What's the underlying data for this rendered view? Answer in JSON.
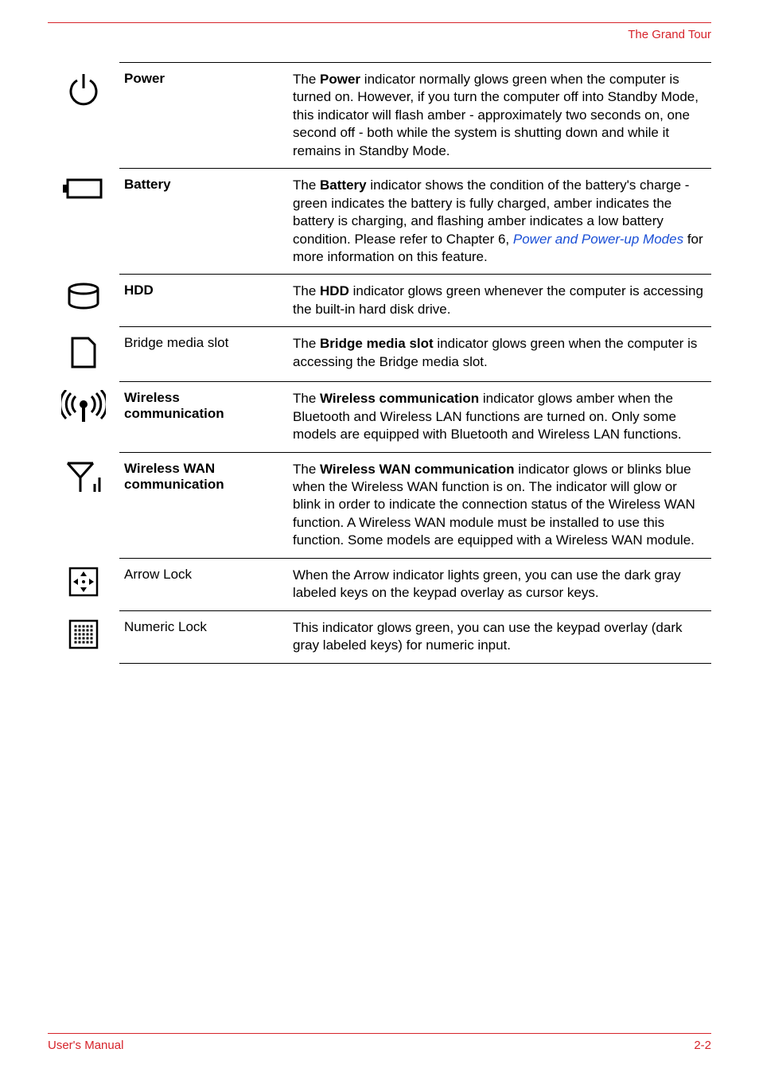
{
  "header": {
    "title": "The Grand Tour"
  },
  "footer": {
    "left": "User's Manual",
    "right": "2-2"
  },
  "colors": {
    "accent": "#d6232a",
    "link": "#1a4fd6",
    "text": "#000000",
    "rule": "#000000"
  },
  "rows": [
    {
      "icon": "power-icon",
      "label": "Power",
      "label_bold": true,
      "desc_parts": [
        {
          "t": "The "
        },
        {
          "t": "Power",
          "bold": true
        },
        {
          "t": " indicator normally glows green when the computer is turned on. However, if you turn the computer off into Standby Mode, this indicator will flash amber - approximately two seconds on, one second off - both while the system is shutting down and while it remains in Standby Mode."
        }
      ]
    },
    {
      "icon": "battery-icon",
      "label": "Battery",
      "label_bold": true,
      "desc_parts": [
        {
          "t": "The "
        },
        {
          "t": "Battery",
          "bold": true
        },
        {
          "t": " indicator shows the condition of the battery's charge - green indicates the battery is fully charged, amber indicates the battery is charging, and flashing amber indicates a low battery condition. Please refer to Chapter 6, "
        },
        {
          "t": "Power and Power-up Modes",
          "link": true
        },
        {
          "t": " for more information on this feature."
        }
      ]
    },
    {
      "icon": "hdd-icon",
      "label": "HDD",
      "label_bold": true,
      "desc_parts": [
        {
          "t": "The "
        },
        {
          "t": "HDD",
          "bold": true
        },
        {
          "t": " indicator glows green whenever the computer is accessing the built-in hard disk drive."
        }
      ]
    },
    {
      "icon": "bridge-media-icon",
      "label": "Bridge media slot",
      "label_bold": false,
      "desc_parts": [
        {
          "t": "The "
        },
        {
          "t": "Bridge media slot",
          "bold": true
        },
        {
          "t": " indicator glows green when the computer is accessing the Bridge media slot."
        }
      ]
    },
    {
      "icon": "wireless-icon",
      "label": "Wireless communication",
      "label_bold": true,
      "desc_parts": [
        {
          "t": "The "
        },
        {
          "t": "Wireless communication",
          "bold": true
        },
        {
          "t": " indicator glows amber when the Bluetooth and Wireless LAN functions are turned on. Only some models are equipped with Bluetooth and Wireless LAN functions."
        }
      ]
    },
    {
      "icon": "wwan-icon",
      "label": "Wireless WAN communication",
      "label_bold": true,
      "desc_parts": [
        {
          "t": "The "
        },
        {
          "t": "Wireless WAN communication",
          "bold": true
        },
        {
          "t": " indicator glows or blinks blue when the Wireless WAN function is on. The indicator will glow or blink in order to indicate the connection status of the Wireless WAN function. A Wireless WAN module must be installed to use this function. Some models are equipped with a Wireless WAN module."
        }
      ]
    },
    {
      "icon": "arrow-lock-icon",
      "label": "Arrow Lock",
      "label_bold": false,
      "desc_parts": [
        {
          "t": "When the Arrow indicator lights green, you can use the dark gray labeled keys on the keypad overlay as cursor keys."
        }
      ]
    },
    {
      "icon": "numeric-lock-icon",
      "label": "Numeric Lock",
      "label_bold": false,
      "desc_parts": [
        {
          "t": "This indicator glows green, you can use the keypad overlay (dark gray labeled keys) for numeric input."
        }
      ]
    }
  ]
}
